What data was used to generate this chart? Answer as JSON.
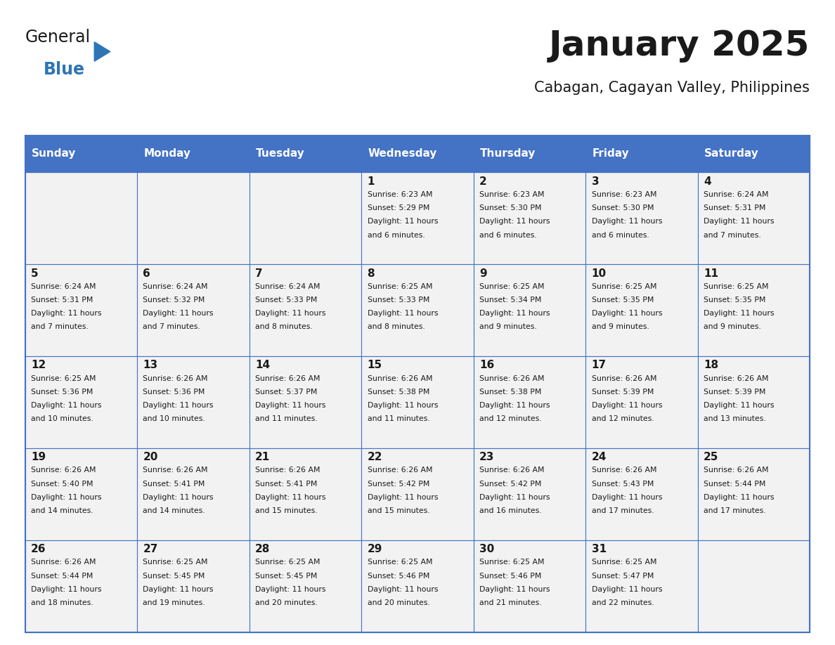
{
  "title": "January 2025",
  "subtitle": "Cabagan, Cagayan Valley, Philippines",
  "header_color": "#4472C4",
  "header_text_color": "#FFFFFF",
  "cell_bg_color": "#F2F2F2",
  "border_color": "#4472C4",
  "title_color": "#1a1a1a",
  "subtitle_color": "#1a1a1a",
  "day_headers": [
    "Sunday",
    "Monday",
    "Tuesday",
    "Wednesday",
    "Thursday",
    "Friday",
    "Saturday"
  ],
  "days": [
    {
      "day": 1,
      "col": 3,
      "row": 0,
      "sunrise": "6:23 AM",
      "sunset": "5:29 PM",
      "daylight": "11 hours and 6 minutes."
    },
    {
      "day": 2,
      "col": 4,
      "row": 0,
      "sunrise": "6:23 AM",
      "sunset": "5:30 PM",
      "daylight": "11 hours and 6 minutes."
    },
    {
      "day": 3,
      "col": 5,
      "row": 0,
      "sunrise": "6:23 AM",
      "sunset": "5:30 PM",
      "daylight": "11 hours and 6 minutes."
    },
    {
      "day": 4,
      "col": 6,
      "row": 0,
      "sunrise": "6:24 AM",
      "sunset": "5:31 PM",
      "daylight": "11 hours and 7 minutes."
    },
    {
      "day": 5,
      "col": 0,
      "row": 1,
      "sunrise": "6:24 AM",
      "sunset": "5:31 PM",
      "daylight": "11 hours and 7 minutes."
    },
    {
      "day": 6,
      "col": 1,
      "row": 1,
      "sunrise": "6:24 AM",
      "sunset": "5:32 PM",
      "daylight": "11 hours and 7 minutes."
    },
    {
      "day": 7,
      "col": 2,
      "row": 1,
      "sunrise": "6:24 AM",
      "sunset": "5:33 PM",
      "daylight": "11 hours and 8 minutes."
    },
    {
      "day": 8,
      "col": 3,
      "row": 1,
      "sunrise": "6:25 AM",
      "sunset": "5:33 PM",
      "daylight": "11 hours and 8 minutes."
    },
    {
      "day": 9,
      "col": 4,
      "row": 1,
      "sunrise": "6:25 AM",
      "sunset": "5:34 PM",
      "daylight": "11 hours and 9 minutes."
    },
    {
      "day": 10,
      "col": 5,
      "row": 1,
      "sunrise": "6:25 AM",
      "sunset": "5:35 PM",
      "daylight": "11 hours and 9 minutes."
    },
    {
      "day": 11,
      "col": 6,
      "row": 1,
      "sunrise": "6:25 AM",
      "sunset": "5:35 PM",
      "daylight": "11 hours and 9 minutes."
    },
    {
      "day": 12,
      "col": 0,
      "row": 2,
      "sunrise": "6:25 AM",
      "sunset": "5:36 PM",
      "daylight": "11 hours and 10 minutes."
    },
    {
      "day": 13,
      "col": 1,
      "row": 2,
      "sunrise": "6:26 AM",
      "sunset": "5:36 PM",
      "daylight": "11 hours and 10 minutes."
    },
    {
      "day": 14,
      "col": 2,
      "row": 2,
      "sunrise": "6:26 AM",
      "sunset": "5:37 PM",
      "daylight": "11 hours and 11 minutes."
    },
    {
      "day": 15,
      "col": 3,
      "row": 2,
      "sunrise": "6:26 AM",
      "sunset": "5:38 PM",
      "daylight": "11 hours and 11 minutes."
    },
    {
      "day": 16,
      "col": 4,
      "row": 2,
      "sunrise": "6:26 AM",
      "sunset": "5:38 PM",
      "daylight": "11 hours and 12 minutes."
    },
    {
      "day": 17,
      "col": 5,
      "row": 2,
      "sunrise": "6:26 AM",
      "sunset": "5:39 PM",
      "daylight": "11 hours and 12 minutes."
    },
    {
      "day": 18,
      "col": 6,
      "row": 2,
      "sunrise": "6:26 AM",
      "sunset": "5:39 PM",
      "daylight": "11 hours and 13 minutes."
    },
    {
      "day": 19,
      "col": 0,
      "row": 3,
      "sunrise": "6:26 AM",
      "sunset": "5:40 PM",
      "daylight": "11 hours and 14 minutes."
    },
    {
      "day": 20,
      "col": 1,
      "row": 3,
      "sunrise": "6:26 AM",
      "sunset": "5:41 PM",
      "daylight": "11 hours and 14 minutes."
    },
    {
      "day": 21,
      "col": 2,
      "row": 3,
      "sunrise": "6:26 AM",
      "sunset": "5:41 PM",
      "daylight": "11 hours and 15 minutes."
    },
    {
      "day": 22,
      "col": 3,
      "row": 3,
      "sunrise": "6:26 AM",
      "sunset": "5:42 PM",
      "daylight": "11 hours and 15 minutes."
    },
    {
      "day": 23,
      "col": 4,
      "row": 3,
      "sunrise": "6:26 AM",
      "sunset": "5:42 PM",
      "daylight": "11 hours and 16 minutes."
    },
    {
      "day": 24,
      "col": 5,
      "row": 3,
      "sunrise": "6:26 AM",
      "sunset": "5:43 PM",
      "daylight": "11 hours and 17 minutes."
    },
    {
      "day": 25,
      "col": 6,
      "row": 3,
      "sunrise": "6:26 AM",
      "sunset": "5:44 PM",
      "daylight": "11 hours and 17 minutes."
    },
    {
      "day": 26,
      "col": 0,
      "row": 4,
      "sunrise": "6:26 AM",
      "sunset": "5:44 PM",
      "daylight": "11 hours and 18 minutes."
    },
    {
      "day": 27,
      "col": 1,
      "row": 4,
      "sunrise": "6:25 AM",
      "sunset": "5:45 PM",
      "daylight": "11 hours and 19 minutes."
    },
    {
      "day": 28,
      "col": 2,
      "row": 4,
      "sunrise": "6:25 AM",
      "sunset": "5:45 PM",
      "daylight": "11 hours and 20 minutes."
    },
    {
      "day": 29,
      "col": 3,
      "row": 4,
      "sunrise": "6:25 AM",
      "sunset": "5:46 PM",
      "daylight": "11 hours and 20 minutes."
    },
    {
      "day": 30,
      "col": 4,
      "row": 4,
      "sunrise": "6:25 AM",
      "sunset": "5:46 PM",
      "daylight": "11 hours and 21 minutes."
    },
    {
      "day": 31,
      "col": 5,
      "row": 4,
      "sunrise": "6:25 AM",
      "sunset": "5:47 PM",
      "daylight": "11 hours and 22 minutes."
    }
  ],
  "logo_text_general": "General",
  "logo_text_blue": "Blue",
  "logo_color_general": "#1a1a1a",
  "logo_color_blue": "#2E75B6",
  "logo_triangle_color": "#2E75B6"
}
